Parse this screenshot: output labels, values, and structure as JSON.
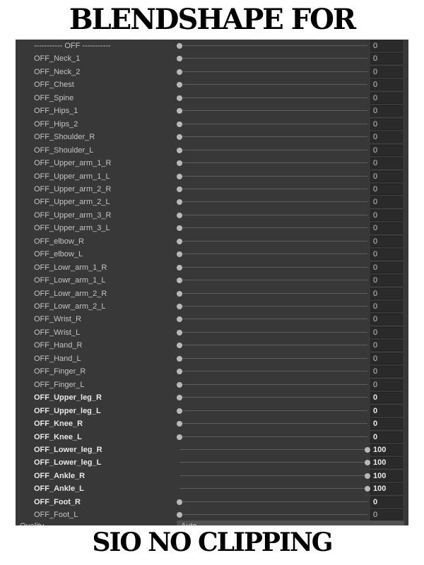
{
  "header": {
    "title": "BLENDSHAPE FOR"
  },
  "rows": [
    {
      "name": "----------- OFF -----------",
      "value": 0,
      "bold": false
    },
    {
      "name": "OFF_Neck_1",
      "value": 0,
      "bold": false
    },
    {
      "name": "OFF_Neck_2",
      "value": 0,
      "bold": false
    },
    {
      "name": "OFF_Chest",
      "value": 0,
      "bold": false
    },
    {
      "name": "OFF_Spine",
      "value": 0,
      "bold": false
    },
    {
      "name": "OFF_Hips_1",
      "value": 0,
      "bold": false
    },
    {
      "name": "OFF_Hips_2",
      "value": 0,
      "bold": false
    },
    {
      "name": "OFF_Shoulder_R",
      "value": 0,
      "bold": false
    },
    {
      "name": "OFF_Shoulder_L",
      "value": 0,
      "bold": false
    },
    {
      "name": "OFF_Upper_arm_1_R",
      "value": 0,
      "bold": false
    },
    {
      "name": "OFF_Upper_arm_1_L",
      "value": 0,
      "bold": false
    },
    {
      "name": "OFF_Upper_arm_2_R",
      "value": 0,
      "bold": false
    },
    {
      "name": "OFF_Upper_arm_2_L",
      "value": 0,
      "bold": false
    },
    {
      "name": "OFF_Upper_arm_3_R",
      "value": 0,
      "bold": false
    },
    {
      "name": "OFF_Upper_arm_3_L",
      "value": 0,
      "bold": false
    },
    {
      "name": "OFF_elbow_R",
      "value": 0,
      "bold": false
    },
    {
      "name": "OFF_elbow_L",
      "value": 0,
      "bold": false
    },
    {
      "name": "OFF_Lowr_arm_1_R",
      "value": 0,
      "bold": false
    },
    {
      "name": "OFF_Lowr_arm_1_L",
      "value": 0,
      "bold": false
    },
    {
      "name": "OFF_Lowr_arm_2_R",
      "value": 0,
      "bold": false
    },
    {
      "name": "OFF_Lowr_arm_2_L",
      "value": 0,
      "bold": false
    },
    {
      "name": "OFF_Wrist_R",
      "value": 0,
      "bold": false
    },
    {
      "name": "OFF_Wrist_L",
      "value": 0,
      "bold": false
    },
    {
      "name": "OFF_Hand_R",
      "value": 0,
      "bold": false
    },
    {
      "name": "OFF_Hand_L",
      "value": 0,
      "bold": false
    },
    {
      "name": "OFF_Finger_R",
      "value": 0,
      "bold": false
    },
    {
      "name": "OFF_Finger_L",
      "value": 0,
      "bold": false
    },
    {
      "name": "OFF_Upper_leg_R",
      "value": 0,
      "bold": true
    },
    {
      "name": "OFF_Upper_leg_L",
      "value": 0,
      "bold": true
    },
    {
      "name": "OFF_Knee_R",
      "value": 0,
      "bold": true
    },
    {
      "name": "OFF_Knee_L",
      "value": 0,
      "bold": true
    },
    {
      "name": "OFF_Lower_leg_R",
      "value": 100,
      "bold": true
    },
    {
      "name": "OFF_Lower_leg_L",
      "value": 100,
      "bold": true
    },
    {
      "name": "OFF_Ankle_R",
      "value": 100,
      "bold": true
    },
    {
      "name": "OFF_Ankle_L",
      "value": 100,
      "bold": true
    },
    {
      "name": "OFF_Foot_R",
      "value": 0,
      "bold": true
    },
    {
      "name": "OFF_Foot_L",
      "value": 0,
      "bold": false
    }
  ],
  "bottom_row": {
    "label": "Quality",
    "dropdown": "Auto"
  },
  "footer": {
    "title": "SIO NO CLIPPING"
  }
}
